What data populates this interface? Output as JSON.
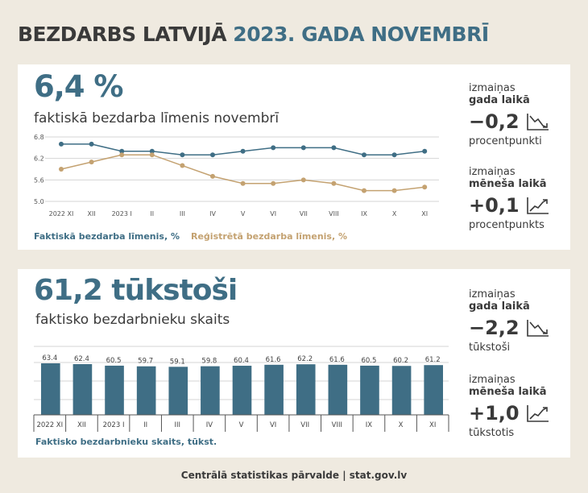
{
  "title": {
    "part1": "BEZDARBS LATVIJĀ",
    "part2": "2023. GADA NOVEMBRĪ"
  },
  "colors": {
    "blue": "#3f6e85",
    "gold": "#c4a271",
    "bg": "#efeae0"
  },
  "section1": {
    "big_value": "6,4 %",
    "subtitle": "faktiskā bezdarba līmenis novembrī",
    "change_year": {
      "line1": "izmaiņas",
      "line2": "gada laikā",
      "value": "−0,2",
      "unit": "procentpunkti",
      "icon": "trend-down-icon"
    },
    "change_month": {
      "line1": "izmaiņas",
      "line2": "mēneša laikā",
      "value": "+0,1",
      "unit": "procentpunkts",
      "icon": "trend-up-icon"
    },
    "legend": {
      "actual": "Faktiskā bezdarba līmenis, %",
      "registered": "Reģistrētā bezdarba līmenis, %"
    }
  },
  "section2": {
    "big_value": "61,2 tūkstoši",
    "subtitle": "faktisko bezdarbnieku skaits",
    "change_year": {
      "line1": "izmaiņas",
      "line2": "gada laikā",
      "value": "−2,2",
      "unit": "tūkstoši",
      "icon": "trend-down-icon"
    },
    "change_month": {
      "line1": "izmaiņas",
      "line2": "mēneša laikā",
      "value": "+1,0",
      "unit": "tūkstotis",
      "icon": "trend-up-icon"
    },
    "caption": "Faktisko bezdarbnieku skaits, tūkst."
  },
  "footer": "Centrālā statistikas pārvalde | stat.gov.lv",
  "chart_data": [
    {
      "type": "line",
      "categories": [
        "2022 XI",
        "XII",
        "2023 I",
        "II",
        "III",
        "IV",
        "V",
        "VI",
        "VII",
        "VIII",
        "IX",
        "X",
        "XI"
      ],
      "series": [
        {
          "name": "Faktiskā bezdarba līmenis, %",
          "color": "#3f6e85",
          "values": [
            6.6,
            6.6,
            6.4,
            6.4,
            6.3,
            6.3,
            6.4,
            6.5,
            6.5,
            6.5,
            6.3,
            6.3,
            6.4
          ]
        },
        {
          "name": "Reģistrētā bezdarba līmenis, %",
          "color": "#c4a271",
          "values": [
            5.9,
            6.1,
            6.3,
            6.3,
            6.0,
            5.7,
            5.5,
            5.5,
            5.6,
            5.5,
            5.3,
            5.3,
            5.4
          ]
        }
      ],
      "yticks": [
        "6.8",
        "6.2",
        "5.6",
        "5.0"
      ],
      "ylim": [
        5.0,
        6.8
      ],
      "grid": true
    },
    {
      "type": "bar",
      "categories": [
        "2022 XI",
        "XII",
        "2023 I",
        "II",
        "III",
        "IV",
        "V",
        "VI",
        "VII",
        "VIII",
        "IX",
        "X",
        "XI"
      ],
      "values": [
        63.4,
        62.4,
        60.5,
        59.7,
        59.1,
        59.8,
        60.4,
        61.6,
        62.2,
        61.6,
        60.5,
        60.2,
        61.2
      ],
      "labels": [
        "63.4",
        "62.4",
        "60.5",
        "59.7",
        "59.1",
        "59.8",
        "60.4",
        "61.6",
        "62.2",
        "61.6",
        "60.5",
        "60.2",
        "61.2"
      ],
      "color": "#3f6e85",
      "grid": true
    }
  ]
}
